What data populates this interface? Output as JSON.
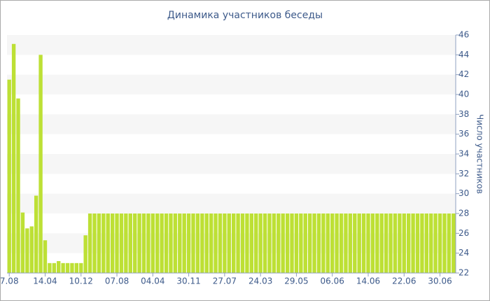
{
  "chart_data": {
    "type": "bar",
    "title": "Динамика участников беседы",
    "y_axis_label": "Число участников",
    "categories": [
      "7.08",
      null,
      null,
      null,
      null,
      null,
      null,
      null,
      "14.04",
      null,
      null,
      null,
      null,
      null,
      null,
      null,
      "10.12",
      null,
      null,
      null,
      null,
      null,
      null,
      null,
      "07.08",
      null,
      null,
      null,
      null,
      null,
      null,
      null,
      "04.04",
      null,
      null,
      null,
      null,
      null,
      null,
      null,
      "30.11",
      null,
      null,
      null,
      null,
      null,
      null,
      null,
      "27.07",
      null,
      null,
      null,
      null,
      null,
      null,
      null,
      "24.03",
      null,
      null,
      null,
      null,
      null,
      null,
      null,
      "29.05",
      null,
      null,
      null,
      null,
      null,
      null,
      null,
      "06.06",
      null,
      null,
      null,
      null,
      null,
      null,
      null,
      "14.06",
      null,
      null,
      null,
      null,
      null,
      null,
      null,
      "22.06",
      null,
      null,
      null,
      null,
      null,
      null,
      null,
      "30.06",
      null,
      null,
      null
    ],
    "values": [
      41.5,
      45.1,
      39.6,
      28.1,
      26.5,
      26.7,
      29.8,
      44.0,
      25.3,
      23.0,
      23.0,
      23.2,
      23.0,
      23.0,
      23.0,
      23.0,
      23.0,
      25.8,
      28,
      28,
      28,
      28,
      28,
      28,
      28,
      28,
      28,
      28,
      28,
      28,
      28,
      28,
      28,
      28,
      28,
      28,
      28,
      28,
      28,
      28,
      28,
      28,
      28,
      28,
      28,
      28,
      28,
      28,
      28,
      28,
      28,
      28,
      28,
      28,
      28,
      28,
      28,
      28,
      28,
      28,
      28,
      28,
      28,
      28,
      28,
      28,
      28,
      28,
      28,
      28,
      28,
      28,
      28,
      28,
      28,
      28,
      28,
      28,
      28,
      28,
      28,
      28,
      28,
      28,
      28,
      28,
      28,
      28,
      28,
      28,
      28,
      28,
      28,
      28,
      28,
      28,
      28,
      28,
      28,
      28
    ],
    "color": "#bde035",
    "ylim": [
      22,
      46
    ],
    "yticks": [
      22,
      24,
      26,
      28,
      30,
      32,
      34,
      36,
      38,
      40,
      42,
      44,
      46
    ],
    "grid": true
  }
}
